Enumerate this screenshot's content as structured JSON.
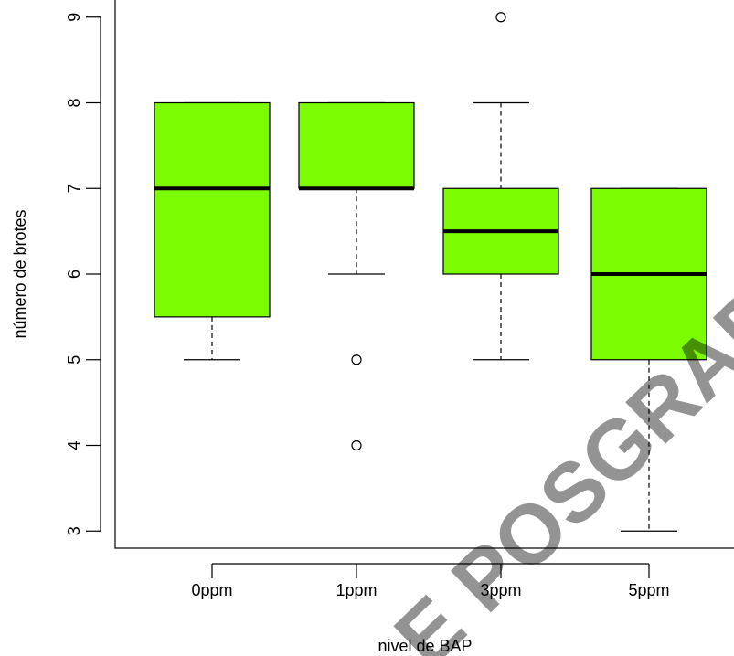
{
  "chart_data": {
    "type": "box",
    "title": "",
    "xlabel": "nivel de BAP",
    "ylabel": "número de brotes",
    "ylim": [
      2.8,
      9.2
    ],
    "yticks": [
      3,
      4,
      5,
      6,
      7,
      8,
      9
    ],
    "categories": [
      "0ppm",
      "1ppm",
      "3ppm",
      "5ppm"
    ],
    "box_color": "#7cfc00",
    "boxes": [
      {
        "category": "0ppm",
        "whisker_low": 5,
        "q1": 5.5,
        "median": 7,
        "q3": 8,
        "whisker_high": 8,
        "outliers": []
      },
      {
        "category": "1ppm",
        "whisker_low": 6,
        "q1": 7,
        "median": 7,
        "q3": 8,
        "whisker_high": 8,
        "outliers": [
          5,
          4
        ]
      },
      {
        "category": "3ppm",
        "whisker_low": 5,
        "q1": 6,
        "median": 6.5,
        "q3": 7,
        "whisker_high": 8,
        "outliers": [
          9
        ]
      },
      {
        "category": "5ppm",
        "whisker_low": 3,
        "q1": 5,
        "median": 6,
        "q3": 7,
        "whisker_high": 7,
        "outliers": []
      }
    ]
  },
  "watermark": {
    "text": "E POSGRADO",
    "color": "#3b3bff"
  }
}
